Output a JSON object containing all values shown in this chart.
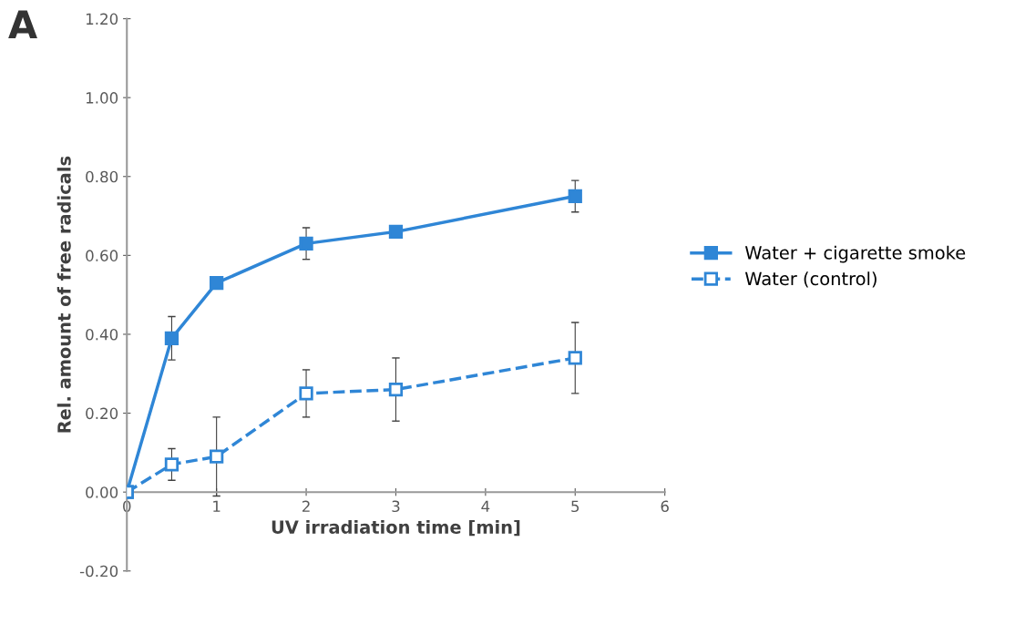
{
  "chart_data": {
    "type": "line",
    "xlabel": "UV irradiation time [min]",
    "ylabel": "Rel. amount of free radicals",
    "annotations": [
      "A"
    ],
    "xlim": [
      0,
      6
    ],
    "xticks": [
      0,
      1,
      2,
      3,
      4,
      5,
      6
    ],
    "ylim": [
      -0.2,
      1.2
    ],
    "yticks": [
      {
        "value": -0.2,
        "label": "-0.20"
      },
      {
        "value": 0,
        "label": "0.00"
      },
      {
        "value": 0.2,
        "label": "0.20"
      },
      {
        "value": 0.4,
        "label": "0.40"
      },
      {
        "value": 0.6,
        "label": "0.60"
      },
      {
        "value": 0.8,
        "label": "0.80"
      },
      {
        "value": 1.0,
        "label": "1.00"
      },
      {
        "value": 1.2,
        "label": "1.20"
      }
    ],
    "grid": false,
    "legend": "right",
    "marker": "square",
    "series": [
      {
        "name": "Water + cigarette smoke",
        "color": "#2f86d6",
        "line_style": "solid",
        "x": [
          0,
          0.5,
          1,
          2,
          3,
          5
        ],
        "values": [
          0,
          0.39,
          0.53,
          0.63,
          0.66,
          0.75
        ],
        "errors": [
          null,
          0.055,
          null,
          0.04,
          null,
          0.04
        ]
      },
      {
        "name": "Water (control)",
        "color": "#2f86d6",
        "line_style": "dashed",
        "x": [
          0,
          0.5,
          1,
          2,
          3,
          5
        ],
        "values": [
          0,
          0.07,
          0.09,
          0.25,
          0.26,
          0.34
        ],
        "errors": [
          null,
          0.04,
          0.1,
          0.06,
          0.08,
          0.09
        ]
      }
    ]
  }
}
